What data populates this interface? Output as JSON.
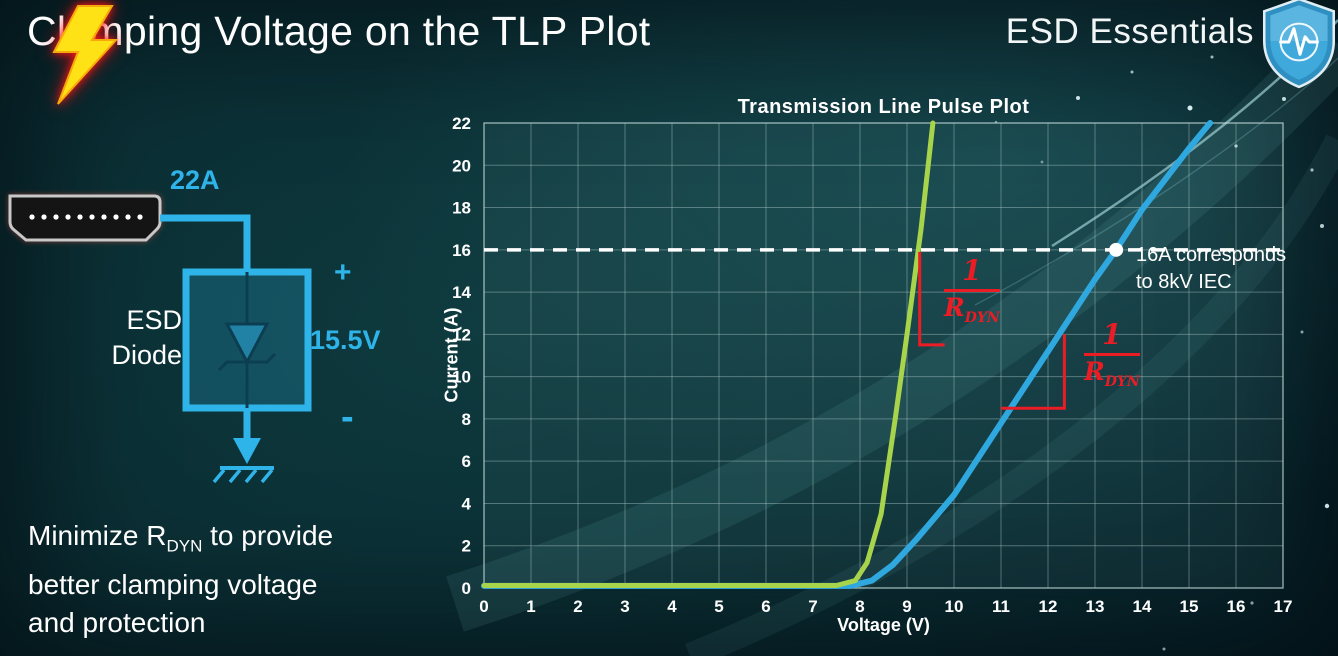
{
  "header": {
    "title": "Clamping Voltage on the TLP Plot",
    "brand": "ESD Essentials"
  },
  "diagram": {
    "surge_current": "22A",
    "device_line1": "ESD",
    "device_line2": "Diode",
    "polarity_plus": "+",
    "polarity_minus": "-",
    "clamping_voltage": "15.5V",
    "accent_color": "#2fb4e9"
  },
  "caption": {
    "line1_pre": "Minimize R",
    "line1_sub": "DYN",
    "line1_post": " to provide",
    "line2": "better clamping voltage",
    "line3": "and protection"
  },
  "chart_data": {
    "type": "line",
    "title": "Transmission Line Pulse Plot",
    "xlabel": "Voltage (V)",
    "ylabel": "Current (A)",
    "xlim": [
      0,
      17
    ],
    "ylim": [
      0,
      22
    ],
    "x_ticks": [
      0,
      1,
      2,
      3,
      4,
      5,
      6,
      7,
      8,
      9,
      10,
      11,
      12,
      13,
      14,
      15,
      16,
      17
    ],
    "y_ticks": [
      0,
      2,
      4,
      6,
      8,
      10,
      12,
      14,
      16,
      18,
      20,
      22
    ],
    "grid": true,
    "grid_color": "rgba(185,210,210,0.4)",
    "legend": "none",
    "series": [
      {
        "name": "blue-tlp-curve",
        "color": "#2fa8e0",
        "width": 6,
        "points": [
          [
            0,
            0.1
          ],
          [
            7.8,
            0.1
          ],
          [
            8.25,
            0.35
          ],
          [
            8.7,
            1.1
          ],
          [
            9.2,
            2.3
          ],
          [
            10,
            4.4
          ],
          [
            11,
            7.8
          ],
          [
            12,
            11.2
          ],
          [
            13,
            14.6
          ],
          [
            13.45,
            16
          ],
          [
            14,
            17.9
          ],
          [
            15,
            20.8
          ],
          [
            15.45,
            22
          ]
        ]
      },
      {
        "name": "green-tlp-curve",
        "color": "#a8d44b",
        "width": 5,
        "points": [
          [
            0,
            0.12
          ],
          [
            7.5,
            0.12
          ],
          [
            7.9,
            0.35
          ],
          [
            8.15,
            1.2
          ],
          [
            8.45,
            3.5
          ],
          [
            8.75,
            8
          ],
          [
            9.0,
            12
          ],
          [
            9.3,
            17
          ],
          [
            9.55,
            22
          ]
        ]
      }
    ],
    "reference_line": {
      "y": 16,
      "color": "#ffffff",
      "dash": "14 9",
      "width": 3.5
    },
    "marker": {
      "x": 13.45,
      "y": 16,
      "r": 7,
      "color": "#ffffff",
      "label_line1": "16A corresponds",
      "label_line2": "to 8kV IEC"
    },
    "slope_marks": [
      {
        "name": "green-rdyn-slope",
        "color": "#ec1c24",
        "points": [
          [
            9.27,
            15.9
          ],
          [
            9.27,
            11.5
          ],
          [
            9.8,
            11.5
          ]
        ]
      },
      {
        "name": "blue-rdyn-slope",
        "color": "#ec1c24",
        "points": [
          [
            11.0,
            8.5
          ],
          [
            12.35,
            8.5
          ],
          [
            12.35,
            12.0
          ]
        ]
      }
    ],
    "rdyn_label": {
      "numerator": "1",
      "denominator": "R",
      "denominator_sub": "DYN",
      "color": "#ec1c24"
    }
  }
}
